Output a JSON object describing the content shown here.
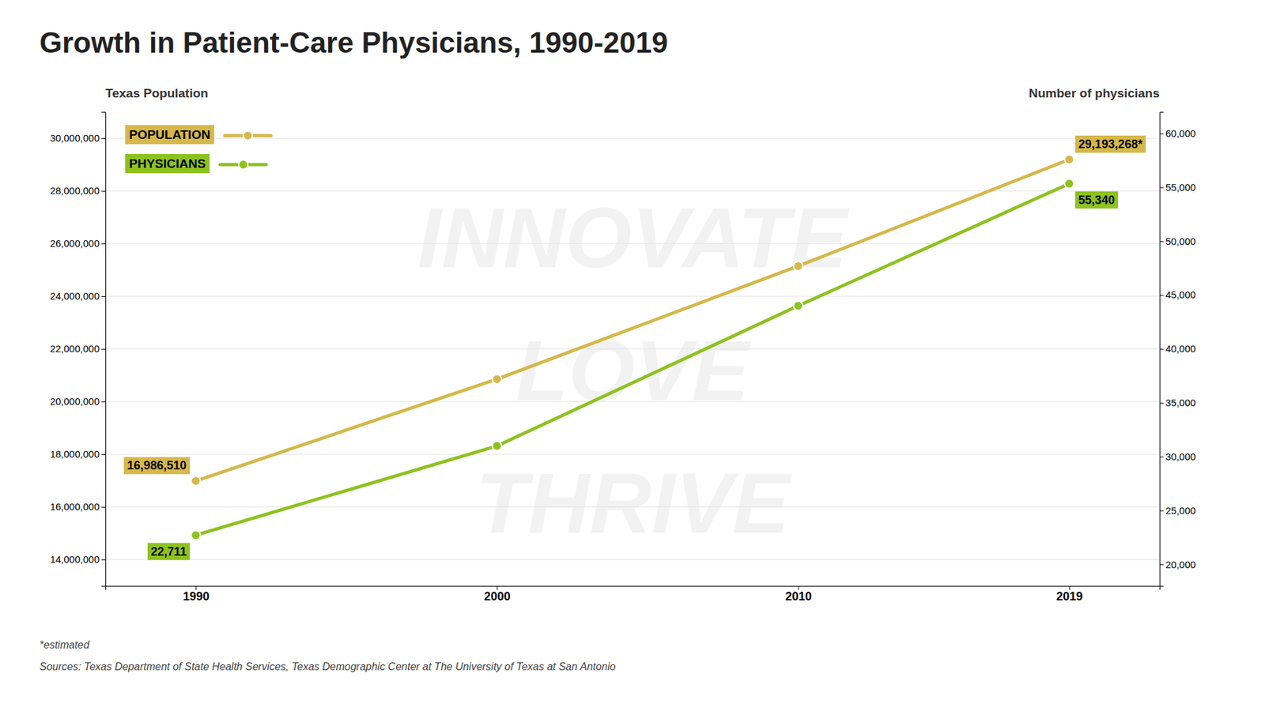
{
  "chart_data": {
    "type": "line",
    "title": "Growth in Patient-Care Physicians, 1990-2019",
    "y_label": "Texas Population",
    "y2_label": "Number of physicians",
    "x": [
      1990,
      2000,
      2010,
      2019
    ],
    "xlim": [
      1987,
      2022
    ],
    "xticks": [
      1990,
      2000,
      2010,
      2019
    ],
    "series": [
      {
        "name": "POPULATION",
        "color": "#D4B84A",
        "marker": "circle",
        "values": [
          16986510,
          20851820,
          25145561,
          29193268
        ],
        "value_labels": [
          "16,986,510",
          null,
          null,
          "29,193,268*"
        ]
      },
      {
        "name": "PHYSICIANS",
        "color": "#8DC21F",
        "marker": "circle",
        "axis": "y2",
        "values": [
          22711,
          31000,
          44000,
          55340
        ],
        "value_labels": [
          "22,711",
          null,
          null,
          "55,340"
        ]
      }
    ],
    "ylim": [
      13000000,
      31000000
    ],
    "yticks": [
      {
        "value": 14000000,
        "label": "14,000,000"
      },
      {
        "value": 16000000,
        "label": "16,000,000"
      },
      {
        "value": 18000000,
        "label": "18,000,000"
      },
      {
        "value": 20000000,
        "label": "20,000,000"
      },
      {
        "value": 22000000,
        "label": "22,000,000"
      },
      {
        "value": 24000000,
        "label": "24,000,000"
      },
      {
        "value": 26000000,
        "label": "26,000,000"
      },
      {
        "value": 28000000,
        "label": "28,000,000"
      },
      {
        "value": 30000000,
        "label": "30,000,000"
      }
    ],
    "y2lim": [
      18000,
      62000
    ],
    "y2ticks": [
      {
        "value": 20000,
        "label": "20,000"
      },
      {
        "value": 25000,
        "label": "25,000"
      },
      {
        "value": 30000,
        "label": "30,000"
      },
      {
        "value": 35000,
        "label": "35,000"
      },
      {
        "value": 40000,
        "label": "40,000"
      },
      {
        "value": 45000,
        "label": "45,000"
      },
      {
        "value": 50000,
        "label": "50,000"
      },
      {
        "value": 55000,
        "label": "55,000"
      },
      {
        "value": 60000,
        "label": "60,000"
      }
    ],
    "grid": true,
    "legend": "upper left",
    "data_labels": true,
    "watermarks": [
      "INNOVATE",
      "LOVE",
      "THRIVE"
    ],
    "footnote": "*estimated",
    "sources": "Sources: Texas Department of State Health Services, Texas Demographic Center at The University of Texas at San Antonio"
  }
}
